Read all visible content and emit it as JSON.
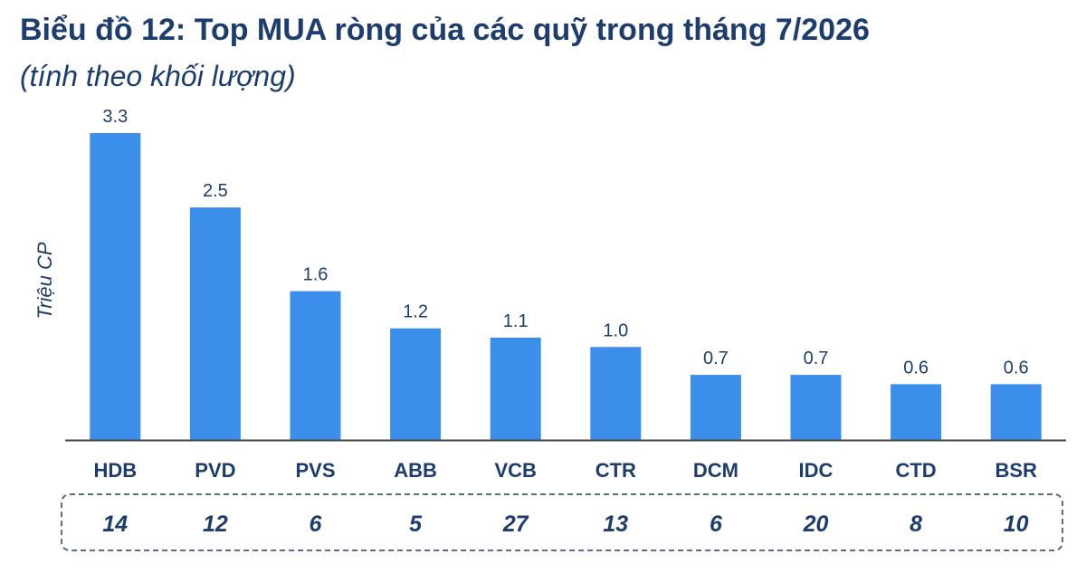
{
  "title": "Biểu đồ 12: Top MUA ròng của các quỹ trong tháng 7/2026",
  "subtitle": "(tính theo khối lượng)",
  "chart_data": {
    "type": "bar",
    "ylabel": "Triệu CP",
    "categories": [
      "HDB",
      "PVD",
      "PVS",
      "ABB",
      "VCB",
      "CTR",
      "DCM",
      "IDC",
      "CTD",
      "BSR"
    ],
    "values": [
      3.3,
      2.5,
      1.6,
      1.2,
      1.1,
      1.0,
      0.7,
      0.7,
      0.6,
      0.6
    ],
    "value_labels": [
      "3.3",
      "2.5",
      "1.6",
      "1.2",
      "1.1",
      "1.0",
      "0.7",
      "0.7",
      "0.6",
      "0.6"
    ],
    "counts": [
      "14",
      "12",
      "6",
      "5",
      "27",
      "13",
      "6",
      "20",
      "8",
      "10"
    ],
    "ylim": [
      0,
      3.3
    ],
    "grid": false,
    "legend": "none"
  },
  "colors": {
    "bar": "#3b8eea",
    "title": "#1c3d6e",
    "label": "#1c3d6e",
    "axis": "#444444"
  }
}
